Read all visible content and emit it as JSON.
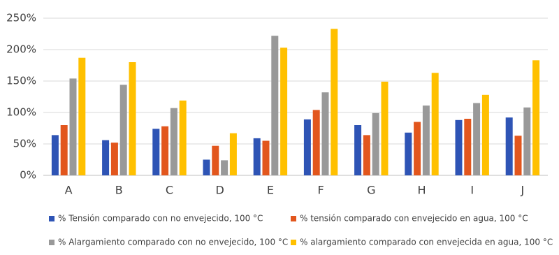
{
  "chart_data": {
    "type": "bar",
    "categories": [
      "A",
      "B",
      "C",
      "D",
      "E",
      "F",
      "G",
      "H",
      "I",
      "J"
    ],
    "series": [
      {
        "name": "% Tensión comparado con no envejecido, 100 °C",
        "color": "#2e54b5",
        "values": [
          64,
          56,
          74,
          25,
          59,
          89,
          80,
          68,
          88,
          92
        ]
      },
      {
        "name": "% tensión comparado con envejecido en agua, 100 °C",
        "color": "#e2561d",
        "values": [
          80,
          52,
          78,
          47,
          55,
          104,
          64,
          85,
          90,
          63
        ]
      },
      {
        "name": "% Alargamiento comparado con no envejecido, 100 °C",
        "color": "#999999",
        "values": [
          154,
          144,
          107,
          24,
          222,
          132,
          99,
          111,
          115,
          108
        ]
      },
      {
        "name": "% alargamiento comparado con envejecida en agua, 100 °C",
        "color": "#ffc000",
        "values": [
          187,
          180,
          119,
          67,
          203,
          233,
          149,
          163,
          128,
          183
        ]
      }
    ],
    "ylim": [
      0,
      250
    ],
    "yticks": [
      {
        "value": 0,
        "label": "0%"
      },
      {
        "value": 50,
        "label": "50%"
      },
      {
        "value": 100,
        "label": "100%"
      },
      {
        "value": 150,
        "label": "150%"
      },
      {
        "value": 200,
        "label": "200%"
      },
      {
        "value": 250,
        "label": "250%"
      }
    ],
    "grid": true,
    "legend": "bottom"
  }
}
